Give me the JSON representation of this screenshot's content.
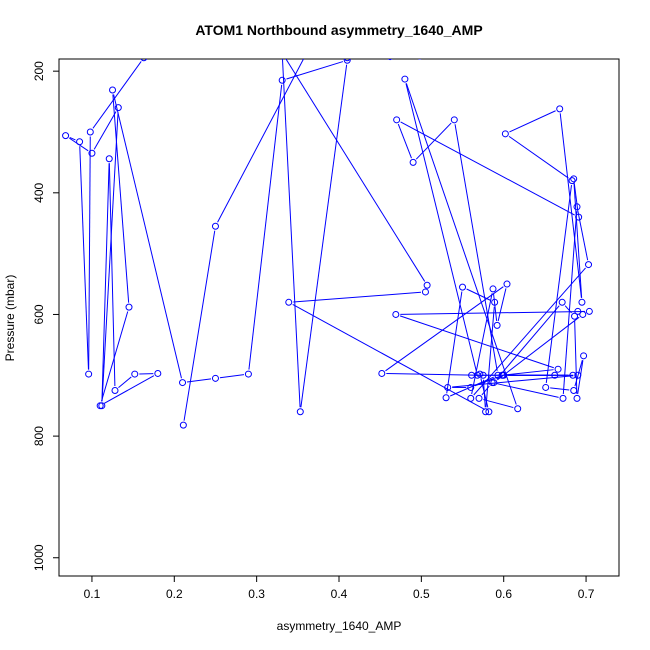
{
  "chart_data": {
    "type": "line",
    "title": "ATOM1 Northbound asymmetry_1640_AMP",
    "xlabel": "asymmetry_1640_AMP",
    "ylabel": "Pressure (mbar)",
    "xlim": [
      0.06,
      0.74
    ],
    "ylim": [
      1030,
      180
    ],
    "y_reversed": true,
    "x_ticks": [
      0.1,
      0.2,
      0.3,
      0.4,
      0.5,
      0.6,
      0.7
    ],
    "x_tick_labels": [
      "0.1",
      "0.2",
      "0.3",
      "0.4",
      "0.5",
      "0.6",
      "0.7"
    ],
    "y_ticks": [
      200,
      400,
      600,
      800,
      1000
    ],
    "y_tick_labels": [
      "200",
      "400",
      "600",
      "800",
      "1000"
    ],
    "grid": false,
    "legend": "none",
    "line_color": "#0000ff",
    "marker": "open-circle",
    "series": [
      {
        "x": [
          0.211,
          0.25,
          0.36,
          0.422,
          0.46,
          0.498,
          0.532,
          0.565,
          0.598,
          0.622,
          0.662,
          0.707,
          0.612,
          0.526,
          0.462,
          0.41,
          0.352,
          0.3,
          0.231,
          0.215,
          0.163,
          0.098,
          0.096,
          0.085,
          0.068,
          0.1,
          0.132,
          0.112,
          0.121,
          0.128,
          0.152,
          0.18,
          0.11,
          0.145,
          0.125,
          0.21,
          0.25,
          0.29,
          0.331,
          0.41,
          0.353,
          0.331,
          0.507,
          0.505,
          0.339,
          0.582,
          0.571,
          0.568,
          0.48,
          0.617,
          0.57,
          0.586,
          0.672,
          0.689,
          0.703,
          0.56,
          0.587,
          0.592,
          0.604,
          0.452,
          0.575,
          0.578,
          0.589,
          0.55,
          0.53,
          0.593,
          0.54,
          0.49,
          0.47,
          0.691,
          0.685,
          0.695,
          0.668,
          0.602,
          0.683,
          0.651,
          0.685,
          0.697,
          0.689,
          0.686,
          0.671,
          0.588,
          0.696,
          0.69,
          0.704,
          0.469,
          0.666,
          0.598,
          0.56,
          0.532,
          0.69,
          0.599,
          0.561,
          0.684,
          0.6,
          0.662
        ],
        "y": [
          782,
          455,
          172,
          168,
          170,
          175,
          168,
          167,
          166,
          165,
          166,
          168,
          172,
          174,
          176,
          178,
          170,
          172,
          174,
          170,
          178,
          300,
          698,
          316,
          306,
          335,
          260,
          750,
          344,
          725,
          698,
          697,
          750,
          588,
          231,
          712,
          705,
          698,
          215,
          182,
          760,
          170,
          552,
          563,
          580,
          760,
          698,
          700,
          213,
          755,
          738,
          712,
          738,
          423,
          518,
          738,
          558,
          618,
          550,
          697,
          700,
          760,
          580,
          555,
          737,
          700,
          280,
          350,
          280,
          440,
          377,
          580,
          262,
          303,
          380,
          720,
          725,
          668,
          738,
          603,
          580,
          712,
          600,
          595,
          595,
          600,
          690,
          700,
          720,
          720,
          700,
          700,
          700,
          700,
          700,
          700
        ]
      }
    ]
  }
}
